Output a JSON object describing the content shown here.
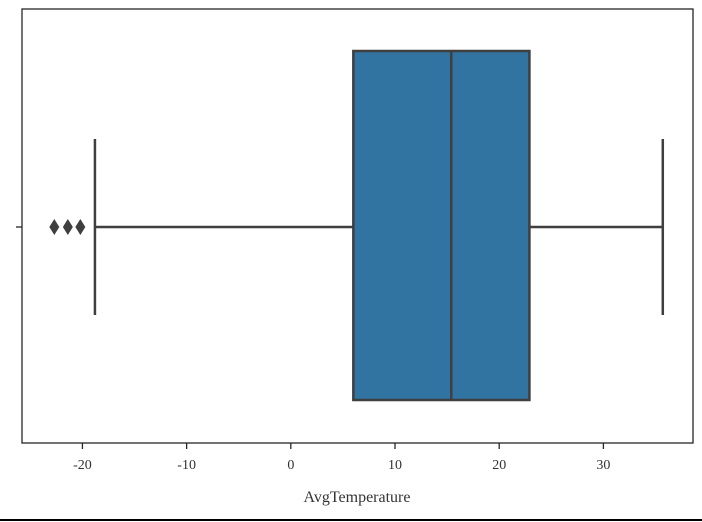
{
  "chart_data": {
    "type": "box",
    "xlabel": "AvgTemperature",
    "ylabel": "",
    "xlim": [
      -25.8,
      38.6
    ],
    "xticks": [
      -20,
      -10,
      0,
      10,
      20,
      30
    ],
    "xtick_labels": [
      "-20",
      "-10",
      "0",
      "10",
      "20",
      "30"
    ],
    "series": [
      {
        "whisker_low": -18.8,
        "q1": 6.0,
        "median": 15.4,
        "q3": 22.9,
        "whisker_high": 35.7,
        "outliers": [
          -22.7,
          -21.4,
          -20.2
        ]
      }
    ],
    "grid": false,
    "colors": {
      "box_fill": "#3274a1",
      "line": "#3f3f3f",
      "frame": "#262626"
    }
  }
}
